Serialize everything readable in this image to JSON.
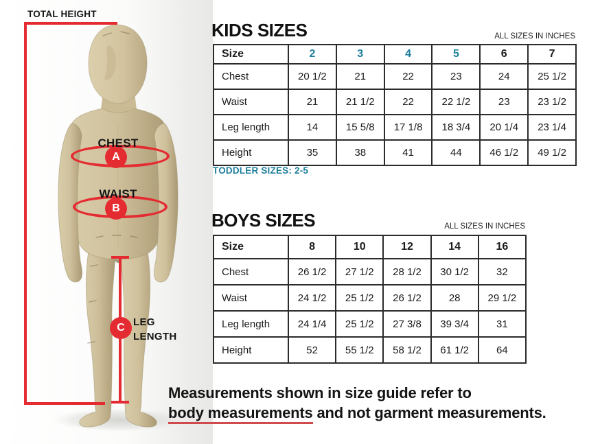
{
  "figure": {
    "total_height_label": "TOTAL HEIGHT",
    "chest": {
      "label": "CHEST",
      "marker": "A"
    },
    "waist": {
      "label": "WAIST",
      "marker": "B"
    },
    "leg": {
      "label_line1": "LEG",
      "label_line2": "LENGTH",
      "marker": "C"
    }
  },
  "kids": {
    "title": "KIDS SIZES",
    "units_note": "ALL SIZES IN INCHES",
    "footnote": "TODDLER SIZES: 2-5",
    "header": [
      "Size",
      "2",
      "3",
      "4",
      "5",
      "6",
      "7"
    ],
    "teal_headers": [
      "2",
      "3",
      "4",
      "5"
    ],
    "rows": [
      {
        "label": "Chest",
        "values": [
          "20 1/2",
          "21",
          "22",
          "23",
          "24",
          "25 1/2"
        ]
      },
      {
        "label": "Waist",
        "values": [
          "21",
          "21 1/2",
          "22",
          "22 1/2",
          "23",
          "23 1/2"
        ]
      },
      {
        "label": "Leg length",
        "values": [
          "14",
          "15 5/8",
          "17 1/8",
          "18 3/4",
          "20 1/4",
          "23 1/4"
        ]
      },
      {
        "label": "Height",
        "values": [
          "35",
          "38",
          "41",
          "44",
          "46 1/2",
          "49 1/2"
        ]
      }
    ]
  },
  "boys": {
    "title": "BOYS SIZES",
    "units_note": "ALL SIZES IN INCHES",
    "header": [
      "Size",
      "8",
      "10",
      "12",
      "14",
      "16"
    ],
    "teal_headers": [],
    "rows": [
      {
        "label": "Chest",
        "values": [
          "26 1/2",
          "27 1/2",
          "28 1/2",
          "30 1/2",
          "32"
        ]
      },
      {
        "label": "Waist",
        "values": [
          "24 1/2",
          "25 1/2",
          "26 1/2",
          "28",
          "29 1/2"
        ]
      },
      {
        "label": "Leg length",
        "values": [
          "24 1/4",
          "25 1/2",
          "27 3/8",
          "39 3/4",
          "31"
        ]
      },
      {
        "label": "Height",
        "values": [
          "52",
          "55 1/2",
          "58 1/2",
          "61 1/2",
          "64"
        ]
      }
    ]
  },
  "note": {
    "line1": "Measurements shown in size guide refer to",
    "line2_underlined": "body measurements",
    "line2_rest": " and not garment measurements."
  },
  "colors": {
    "accent_red": "#e52b32",
    "underline_red": "#d04a4e",
    "accent_teal": "#1e7e9c",
    "table_border": "#2b2b2b",
    "mannequin_tan": "#cfc09c"
  }
}
